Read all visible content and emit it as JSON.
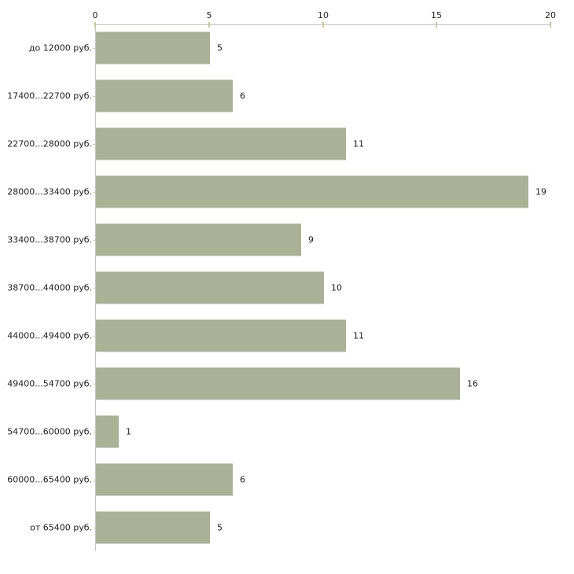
{
  "chart_data": {
    "type": "bar",
    "orientation": "horizontal",
    "title": "",
    "xlabel": "",
    "ylabel": "",
    "categories": [
      "до 12000 руб.",
      "17400...22700 руб.",
      "22700...28000 руб.",
      "28000...33400 руб.",
      "33400...38700 руб.",
      "38700...44000 руб.",
      "44000...49400 руб.",
      "49400...54700 руб.",
      "54700...60000 руб.",
      "60000...65400 руб.",
      "от 65400 руб."
    ],
    "values": [
      5,
      6,
      11,
      19,
      9,
      10,
      11,
      16,
      1,
      6,
      5
    ],
    "value_labels": [
      "5",
      "6",
      "11",
      "19",
      "9",
      "10",
      "11",
      "16",
      "1",
      "6",
      "5"
    ],
    "xlim": [
      0,
      20
    ],
    "x_ticks": [
      0,
      5,
      10,
      15,
      20
    ],
    "x_axis_position": "top",
    "grid": false,
    "legend": null,
    "colors": {
      "bar": "#abb197",
      "axis": "#c4c4c4",
      "tick": "#c8c8a2",
      "text": "#222222",
      "background": "#ffffff"
    }
  }
}
